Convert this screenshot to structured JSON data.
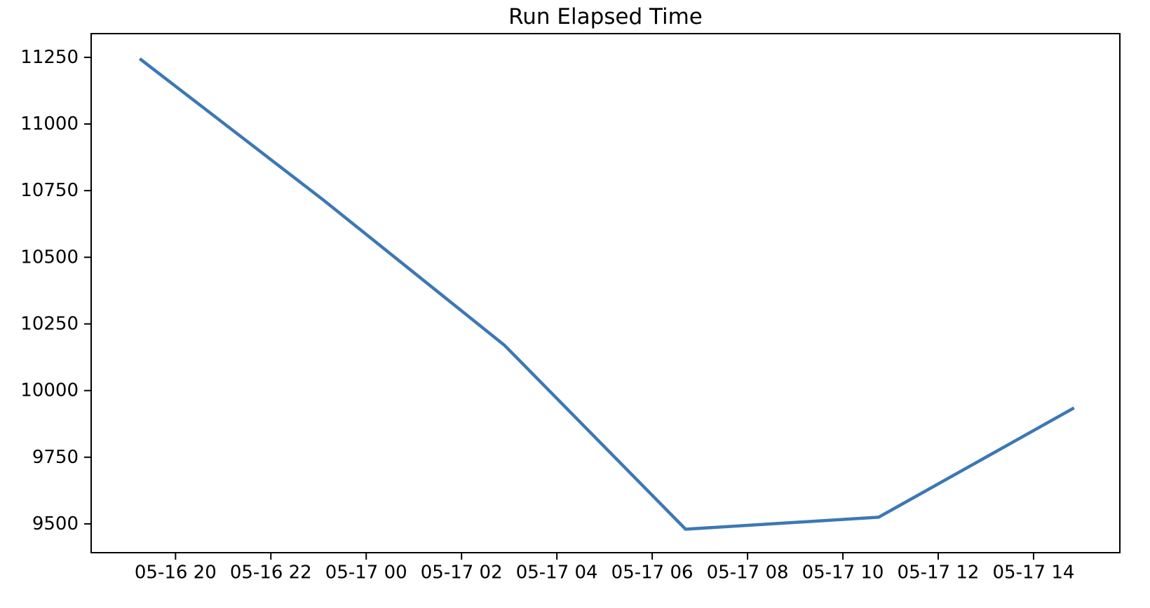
{
  "figure": {
    "title": "Run Elapsed Time"
  },
  "chart_data": {
    "type": "line",
    "title": "Run Elapsed Time",
    "xlabel": "",
    "ylabel": "",
    "grid": false,
    "legend_position": "none",
    "axis_color": "#000000",
    "background_color": "#ffffff",
    "x_tick_labels": [
      "05-16 20",
      "05-16 22",
      "05-17 00",
      "05-17 02",
      "05-17 04",
      "05-17 06",
      "05-17 08",
      "05-17 10",
      "05-17 12",
      "05-17 14"
    ],
    "x_tick_hours": [
      20,
      22,
      24,
      26,
      28,
      30,
      32,
      34,
      36,
      38
    ],
    "y_tick_labels": [
      "9500",
      "9750",
      "10000",
      "10250",
      "10500",
      "10750",
      "11000",
      "11250"
    ],
    "y_ticks": [
      9500,
      9750,
      10000,
      10250,
      10500,
      10750,
      11000,
      11250
    ],
    "xlim_hours": [
      18.23,
      39.81
    ],
    "ylim": [
      9392,
      11339
    ],
    "series": [
      {
        "name": "Run Elapsed Time",
        "color": "#3C78B4",
        "line_width": 4.5,
        "x_labels": [
          "05-16 19:15",
          "05-16 23:05",
          "05-17 02:55",
          "05-17 06:40",
          "05-17 10:45",
          "05-17 14:50"
        ],
        "x_hours": [
          19.25,
          23.1,
          26.9,
          30.7,
          34.75,
          38.85
        ],
        "values": [
          11245,
          10715,
          10170,
          9480,
          9525,
          9935
        ]
      }
    ]
  }
}
